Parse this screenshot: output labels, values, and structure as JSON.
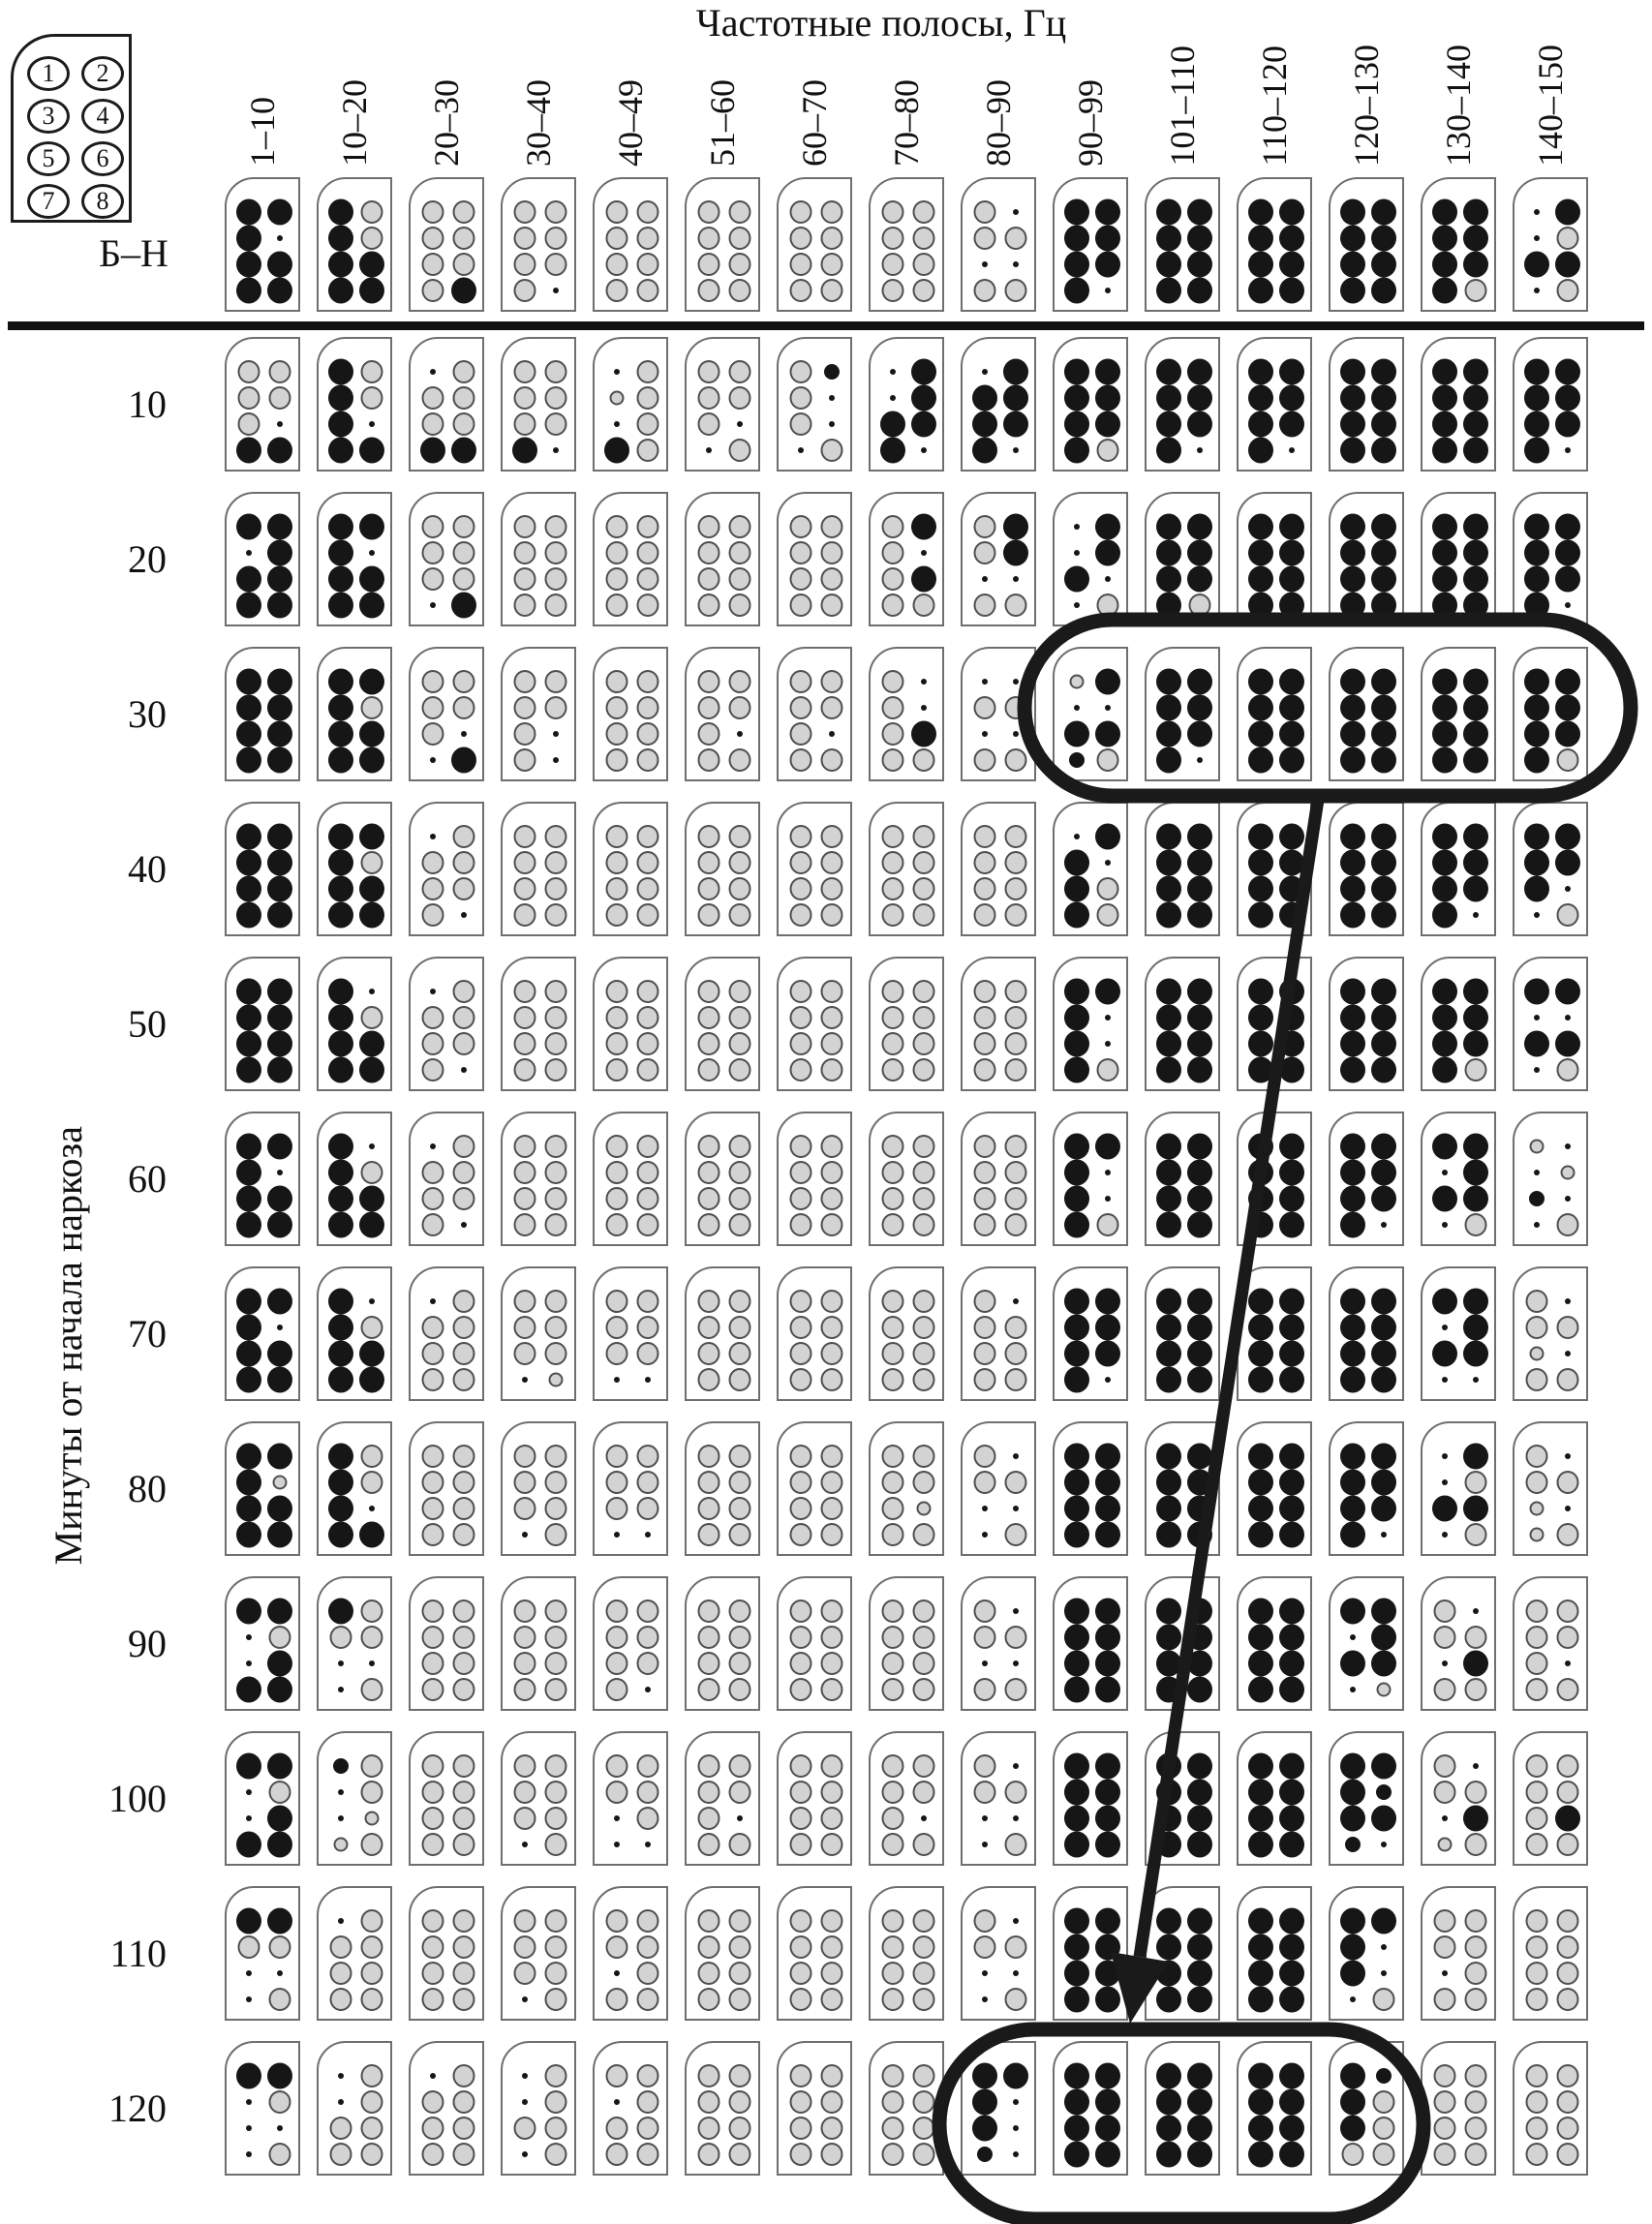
{
  "figure": {
    "title": "Частотные полосы, Гц",
    "y_axis_label": "Минуты от начала наркоза",
    "baseline_row_label": "Б–Н",
    "legend_card_numbers": [
      "1",
      "2",
      "3",
      "4",
      "5",
      "6",
      "7",
      "8"
    ],
    "colors": {
      "black_dot": "#161616",
      "gray_dot_fill": "#d3d3d3",
      "gray_dot_border": "#4f4f4f",
      "card_border": "#6f6f6f",
      "annotation": "#1a1a1a"
    }
  },
  "chart_data": {
    "type": "heatmap",
    "title": "Частотные полосы, Гц",
    "ylabel": "Минуты от начала наркоза",
    "x_categories": [
      "1–10",
      "10–20",
      "20–30",
      "30–40",
      "40–49",
      "51–60",
      "60–70",
      "70–80",
      "80–90",
      "90–99",
      "101–110",
      "110–120",
      "120–130",
      "130–140",
      "140–150"
    ],
    "y_categories": [
      "Б–Н",
      "10",
      "20",
      "30",
      "40",
      "50",
      "60",
      "70",
      "80",
      "90",
      "100",
      "110",
      "120"
    ],
    "encoding": "Each cell card holds 8 dot positions numbered as in the legend card (1-2 top row ... 7-8 bottom row). Codes: B=large black dot, b=small black dot, G=large gray circle, g=small gray circle, .=tiny point",
    "cells": [
      [
        "BBB.BBBB",
        "BGBGBBBB",
        "GGGGGGGB",
        "GGGGGGG.",
        "GGGGGGGG",
        "GGGGGGGG",
        "GGGGGGGG",
        "GGGGGGGG",
        "G.GG..GG",
        "BBBBBBB.",
        "BBBBBBBB",
        "BBBBBBBB",
        "BBBBBBBB",
        "BBBBBBBG",
        ".B.GBB.G"
      ],
      [
        "GGGGG.BB",
        "BGBGB.BB",
        ".GGGGGBB",
        "GGGGGGB.",
        ".GgG.GBG",
        "GGGGG..G",
        "GbG.G..G",
        ".B.BBBB.",
        ".BBBBBB.",
        "BBBBBBBG",
        "BBBBBBB.",
        "BBBBBBB.",
        "BBBBBBBB",
        "BBBBBBBB",
        "BBBBBBB."
      ],
      [
        "BB.BBBBB",
        "BBB.BBBB",
        "GGGGGG.B",
        "GGGGGGGG",
        "GGGGGGGG",
        "GGGGGGGG",
        "GGGGGGGG",
        "GBG.GBGG",
        "GBGB..GG",
        ".B.BB..G",
        "BBBBBBBG",
        "BBBBBBBB",
        "BBBBBBBB",
        "BBBBBBBB",
        "BBBBBBB."
      ],
      [
        "BBBBBBBB",
        "BBBGBBBB",
        "GGGGG..B",
        "GGGGG.G.",
        "GGGGGGGG",
        "GGGGG.GG",
        "GGGGG.GG",
        "G.G.GBGG",
        "..GG..GG",
        "gB..BBbG",
        "BBBBBBB.",
        "BBBBBBBB",
        "BBBBBBBB",
        "BBBBBBBB",
        "BBBBBBBG"
      ],
      [
        "BBBBBBBB",
        "BBBGBBBB",
        ".GGGGGG.",
        "GGGGGGGG",
        "GGGGGGGG",
        "GGGGGGGG",
        "GGGGGGGG",
        "GGGGGGGG",
        "GGGGGGGG",
        ".BB.BGBG",
        "BBBBBBBB",
        "BBBBBBBB",
        "BBBBBBBB",
        "BBBBBBB.",
        "BBBBB..G"
      ],
      [
        "BBBBBBBB",
        "B.BGBBBB",
        ".GGGGGG.",
        "GGGGGGGG",
        "GGGGGGGG",
        "GGGGGGGG",
        "GGGGGGGG",
        "GGGGGGGG",
        "GGGGGGGG",
        "BBB.B.BG",
        "BBBBBBBB",
        "BBBBBBBB",
        "BBBBBBBB",
        "BBBBBBBG",
        "BB..BB.G"
      ],
      [
        "BBB.BBBB",
        "B.BGBBBB",
        ".GGGGGG.",
        "GGGGGGGG",
        "GGGGGGGG",
        "GGGGGGGG",
        "GGGGGGGG",
        "GGGGGGGG",
        "GGGGGGGG",
        "BBB.B.BG",
        "BBBBBBBB",
        "BBBBBBBB",
        "BBBBBBB.",
        "BB.BBB.G",
        "g..gb..G"
      ],
      [
        "BBB.BBBB",
        "B.BGBBBB",
        ".GGGGGGG",
        "GGGGGG.g",
        "GGGGGG..",
        "GGGGGGGG",
        "GGGGGGGG",
        "GGGGGGGG",
        "G.GGGGGG",
        "BBBBBBB.",
        "BBBBBBBB",
        "BBBBBBBB",
        "BBBBBBBB",
        "BB.BBB..",
        "G.GGg.GG"
      ],
      [
        "BBBgBBBB",
        "BGBGB.BB",
        "GGGGGGGG",
        "GGGGGG.G",
        "GGGGGG..",
        "GGGGGGGG",
        "GGGGGGGG",
        "GGGGGgGG",
        "G.GG...G",
        "BBBBBBBB",
        "BBBBBBBB",
        "BBBBBBBB",
        "BBBBBBB.",
        ".B.GBB.G",
        "G.GGg.gG"
      ],
      [
        "BB.G.BBB",
        "BGGG...G",
        "GGGGGGGG",
        "GGGGGGGG",
        "GGGGGGG.",
        "GGGGGGGG",
        "GGGGGGGG",
        "GGGGGGGG",
        "G.GG..GG",
        "BBBBBBBB",
        "BBBBBBBB",
        "BBBBBBBB",
        "BB.BBB.g",
        "G.GG.BGG",
        "GGGGG.GG"
      ],
      [
        "BB.G.BBB",
        "bG.G.ggG",
        "GGGGGGGG",
        "GGGGGG.G",
        "GGGG.G..",
        "GGGGG.GG",
        "GGGGGGGG",
        "GGGGG.GG",
        "G.GG...G",
        "BBBBBBBB",
        "BBBBBBBB",
        "BBBBBBBB",
        "BBBbBBb.",
        "G.GG.BgG",
        "GGGGGBGG"
      ],
      [
        "BBGG...G",
        ".GGGGGGG",
        "GGGGGGGG",
        "GGGGGG.G",
        "GGGG.GGG",
        "GGGGGGGG",
        "GGGGGGGG",
        "GGGGGGGG",
        "G.GG...G",
        "BBBBBBBB",
        "BBBBBBBB",
        "BBBBBBBB",
        "BBB.B..G",
        "GGGG.GGG",
        "GGGGGGGG"
      ],
      [
        "BB.G...G",
        ".G.GGGGG",
        ".GGGGGGG",
        ".G.GGG.G",
        "GG.GGGGG",
        "GGGGGGGG",
        "GGGGGGGG",
        "GGGGGGGG",
        "BBB.B.b.",
        "BBBBBBBB",
        "BBBBBBBB",
        "BBBBBBBB",
        "BbBGBGGG",
        "GGGGGGGG",
        "GGGGGGGG"
      ]
    ],
    "annotations": {
      "ellipse_1": {
        "row": "30",
        "from_col": "90–99",
        "to_col": "140–150"
      },
      "ellipse_2": {
        "row": "120",
        "from_col": "80–90",
        "to_col": "120–130"
      },
      "arrow": {
        "from": "ellipse_1 bottom",
        "to": "ellipse_2 top"
      }
    },
    "legend_position": "top-left card with positions 1–8",
    "grid": "13 rows × 15 columns of dot-pattern cards; thick rule separates baseline row (Б–Н) from timed rows"
  }
}
